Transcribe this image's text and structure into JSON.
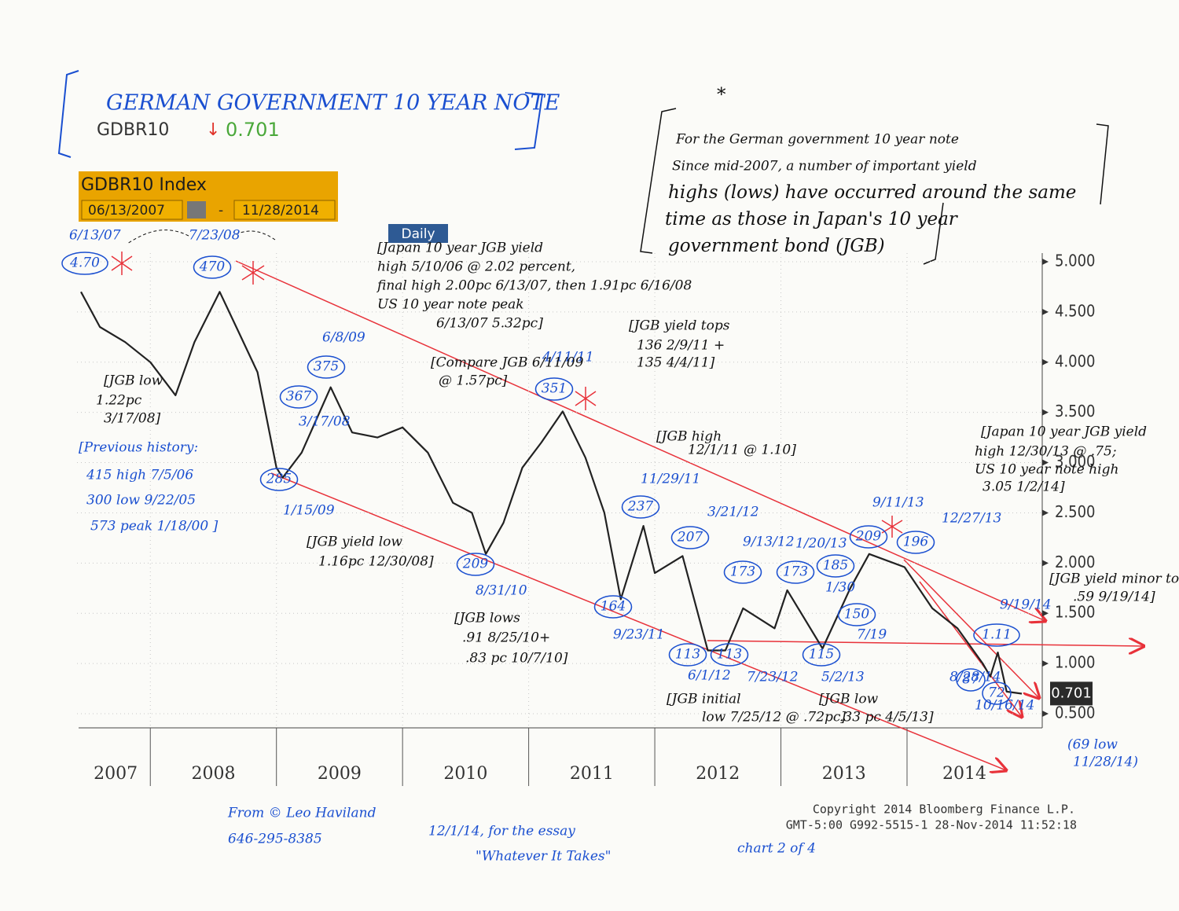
{
  "header": {
    "title": "GERMAN GOVERNMENT 10 YEAR NOTE",
    "ticker": "GDBR10",
    "arrow": "↓"
  },
  "chart_data": {
    "type": "line",
    "index_label": "GDBR10 Index",
    "start_date": "06/13/2007",
    "date_separator": "-",
    "end_date": "11/28/2014",
    "period": "Daily",
    "x": [
      2007.45,
      2007.6,
      2007.8,
      2008.0,
      2008.2,
      2008.35,
      2008.55,
      2008.7,
      2008.85,
      2009.0,
      2009.05,
      2009.2,
      2009.43,
      2009.6,
      2009.8,
      2010.0,
      2010.2,
      2010.4,
      2010.55,
      2010.66,
      2010.8,
      2010.95,
      2011.1,
      2011.27,
      2011.45,
      2011.6,
      2011.73,
      2011.91,
      2012.0,
      2012.22,
      2012.42,
      2012.56,
      2012.7,
      2012.95,
      2013.05,
      2013.33,
      2013.55,
      2013.7,
      2013.98,
      2014.2,
      2014.4,
      2014.6,
      2014.66,
      2014.72,
      2014.79,
      2014.91
    ],
    "values": [
      4.7,
      4.35,
      4.2,
      4.0,
      3.67,
      4.2,
      4.7,
      4.3,
      3.9,
      2.95,
      2.85,
      3.1,
      3.75,
      3.3,
      3.25,
      3.35,
      3.1,
      2.6,
      2.5,
      2.09,
      2.4,
      2.95,
      3.2,
      3.51,
      3.05,
      2.5,
      1.64,
      2.37,
      1.9,
      2.07,
      1.13,
      1.13,
      1.55,
      1.35,
      1.73,
      1.15,
      1.75,
      2.09,
      1.96,
      1.55,
      1.35,
      1.0,
      0.87,
      1.11,
      0.72,
      0.7
    ],
    "color": "#222222",
    "last_price": 0.701,
    "xlim": [
      2007.45,
      2014.91
    ],
    "xticks": [
      2008,
      2009,
      2010,
      2011,
      2012,
      2013,
      2014
    ],
    "categories": [
      "2007",
      "2008",
      "2009",
      "2010",
      "2011",
      "2012",
      "2013",
      "2014"
    ],
    "ylim": [
      0.3,
      5.2
    ],
    "yticks": [
      {
        "value": 0.5,
        "label": "0.500"
      },
      {
        "value": 1,
        "label": "1.000"
      },
      {
        "value": 1.5,
        "label": "1.500"
      },
      {
        "value": 2,
        "label": "2.000"
      },
      {
        "value": 2.5,
        "label": "2.500"
      },
      {
        "value": 3,
        "label": "3.000"
      },
      {
        "value": 3.5,
        "label": "3.500"
      },
      {
        "value": 4,
        "label": "4.000"
      },
      {
        "value": 4.5,
        "label": "4.500"
      },
      {
        "value": 5,
        "label": "5.000"
      }
    ],
    "grid": true
  },
  "annotations": [
    {
      "text": "6/13/07",
      "color": "#1a4fd0"
    },
    {
      "text": "4.70",
      "color": "#1a4fd0",
      "circled": true
    },
    {
      "text": "7/23/08",
      "color": "#1a4fd0"
    },
    {
      "text": "470",
      "color": "#1a4fd0",
      "circled": true
    },
    {
      "text": "367",
      "color": "#1a4fd0",
      "circled": true
    },
    {
      "text": "3/17/08",
      "color": "#1a4fd0"
    },
    {
      "text": "6/8/09",
      "color": "#1a4fd0"
    },
    {
      "text": "375",
      "color": "#1a4fd0",
      "circled": true
    },
    {
      "text": "4/11/11",
      "color": "#1a4fd0"
    },
    {
      "text": "351",
      "color": "#1a4fd0",
      "circled": true
    },
    {
      "text": "285",
      "color": "#1a4fd0",
      "circled": true
    },
    {
      "text": "1/15/09",
      "color": "#1a4fd0"
    },
    {
      "text": "209",
      "color": "#1a4fd0",
      "circled": true
    },
    {
      "text": "8/31/10",
      "color": "#1a4fd0"
    },
    {
      "text": "11/29/11",
      "color": "#1a4fd0"
    },
    {
      "text": "237",
      "color": "#1a4fd0",
      "circled": true
    },
    {
      "text": "3/21/12",
      "color": "#1a4fd0"
    },
    {
      "text": "207",
      "color": "#1a4fd0",
      "circled": true
    },
    {
      "text": "164",
      "color": "#1a4fd0",
      "circled": true
    },
    {
      "text": "9/23/11",
      "color": "#1a4fd0"
    },
    {
      "text": "9/13/12",
      "color": "#1a4fd0"
    },
    {
      "text": "173",
      "color": "#1a4fd0",
      "circled": true
    },
    {
      "text": "1/20/13",
      "color": "#1a4fd0"
    },
    {
      "text": "173",
      "color": "#1a4fd0",
      "circled": true
    },
    {
      "text": "185",
      "color": "#1a4fd0",
      "circled": true
    },
    {
      "text": "1/30",
      "color": "#1a4fd0"
    },
    {
      "text": "150",
      "color": "#1a4fd0",
      "circled": true
    },
    {
      "text": "7/19",
      "color": "#1a4fd0"
    },
    {
      "text": "9/11/13",
      "color": "#1a4fd0"
    },
    {
      "text": "209",
      "color": "#1a4fd0",
      "circled": true
    },
    {
      "text": "12/27/13",
      "color": "#1a4fd0"
    },
    {
      "text": "196",
      "color": "#1a4fd0",
      "circled": true
    },
    {
      "text": "113",
      "color": "#1a4fd0",
      "circled": true
    },
    {
      "text": "113",
      "color": "#1a4fd0",
      "circled": true
    },
    {
      "text": "6/1/12",
      "color": "#1a4fd0"
    },
    {
      "text": "7/23/12",
      "color": "#1a4fd0"
    },
    {
      "text": "115",
      "color": "#1a4fd0",
      "circled": true
    },
    {
      "text": "5/2/13",
      "color": "#1a4fd0"
    },
    {
      "text": "9/19/14",
      "color": "#1a4fd0"
    },
    {
      "text": "1.11",
      "color": "#1a4fd0",
      "circled": true
    },
    {
      "text": "8/28/14",
      "color": "#1a4fd0"
    },
    {
      "text": "87",
      "color": "#1a4fd0",
      "circled": true
    },
    {
      "text": "72",
      "color": "#1a4fd0",
      "circled": true
    },
    {
      "text": "10/16/14",
      "color": "#1a4fd0"
    },
    {
      "text": "(69 low",
      "color": "#1a4fd0"
    },
    {
      "text": "11/28/14)",
      "color": "#1a4fd0"
    },
    {
      "text": "[Previous history:",
      "color": "#1a4fd0"
    },
    {
      "text": "415 high 7/5/06",
      "color": "#1a4fd0"
    },
    {
      "text": "300 low 9/22/05",
      "color": "#1a4fd0"
    },
    {
      "text": "573 peak 1/18/00 ]",
      "color": "#1a4fd0"
    },
    {
      "text": "From © Leo Haviland",
      "color": "#1a4fd0"
    },
    {
      "text": "646-295-8385",
      "color": "#1a4fd0"
    },
    {
      "text": "12/1/14, for the essay",
      "color": "#1a4fd0"
    },
    {
      "text": "\"Whatever It Takes\"",
      "color": "#1a4fd0"
    },
    {
      "text": "chart 2 of 4",
      "color": "#1a4fd0"
    },
    {
      "text": "[JGB low",
      "color": "#111111"
    },
    {
      "text": "1.22pc",
      "color": "#111111"
    },
    {
      "text": "3/17/08]",
      "color": "#111111"
    },
    {
      "text": "[Japan 10 year JGB yield",
      "color": "#111111"
    },
    {
      "text": "high 5/10/06 @ 2.02 percent,",
      "color": "#111111"
    },
    {
      "text": "final high 2.00pc 6/13/07, then 1.91pc 6/16/08",
      "color": "#111111"
    },
    {
      "text": "US 10 year note peak",
      "color": "#111111"
    },
    {
      "text": "6/13/07 5.32pc]",
      "color": "#111111"
    },
    {
      "text": "[Compare JGB 6/11/09",
      "color": "#111111"
    },
    {
      "text": "@ 1.57pc]",
      "color": "#111111"
    },
    {
      "text": "[JGB yield tops",
      "color": "#111111"
    },
    {
      "text": "136 2/9/11 +",
      "color": "#111111"
    },
    {
      "text": "135 4/4/11]",
      "color": "#111111"
    },
    {
      "text": "[JGB high",
      "color": "#111111"
    },
    {
      "text": "12/1/11 @ 1.10]",
      "color": "#111111"
    },
    {
      "text": "[JGB yield low",
      "color": "#111111"
    },
    {
      "text": "1.16pc 12/30/08]",
      "color": "#111111"
    },
    {
      "text": "[JGB lows",
      "color": "#111111"
    },
    {
      "text": ".91 8/25/10+",
      "color": "#111111"
    },
    {
      "text": ".83 pc 10/7/10]",
      "color": "#111111"
    },
    {
      "text": "[JGB initial",
      "color": "#111111"
    },
    {
      "text": "low 7/25/12 @ .72pc]",
      "color": "#111111"
    },
    {
      "text": "[JGB low",
      "color": "#111111"
    },
    {
      "text": ".33 pc 4/5/13]",
      "color": "#111111"
    },
    {
      "text": "[Japan 10 year JGB yield",
      "color": "#111111"
    },
    {
      "text": "high 12/30/13 @ .75;",
      "color": "#111111"
    },
    {
      "text": "US 10 year note high",
      "color": "#111111"
    },
    {
      "text": "3.05 1/2/14]",
      "color": "#111111"
    },
    {
      "text": "[JGB yield minor top",
      "color": "#111111"
    },
    {
      "text": ".59 9/19/14]",
      "color": "#111111"
    },
    {
      "text": "For the German government 10 year note",
      "color": "#111111"
    },
    {
      "text": "Since mid-2007, a number of important yield",
      "color": "#111111"
    },
    {
      "text": "highs (lows) have occurred around the same",
      "color": "#111111"
    },
    {
      "text": "time as those in Japan's 10 year",
      "color": "#111111"
    },
    {
      "text": "government bond (JGB)",
      "color": "#111111"
    },
    {
      "text": "*",
      "color": "#111111"
    }
  ],
  "footer": {
    "copyright": "Copyright 2014 Bloomberg Finance L.P.",
    "stamp": "GMT-5:00 G992-5515-1 28-Nov-2014 11:52:18"
  }
}
